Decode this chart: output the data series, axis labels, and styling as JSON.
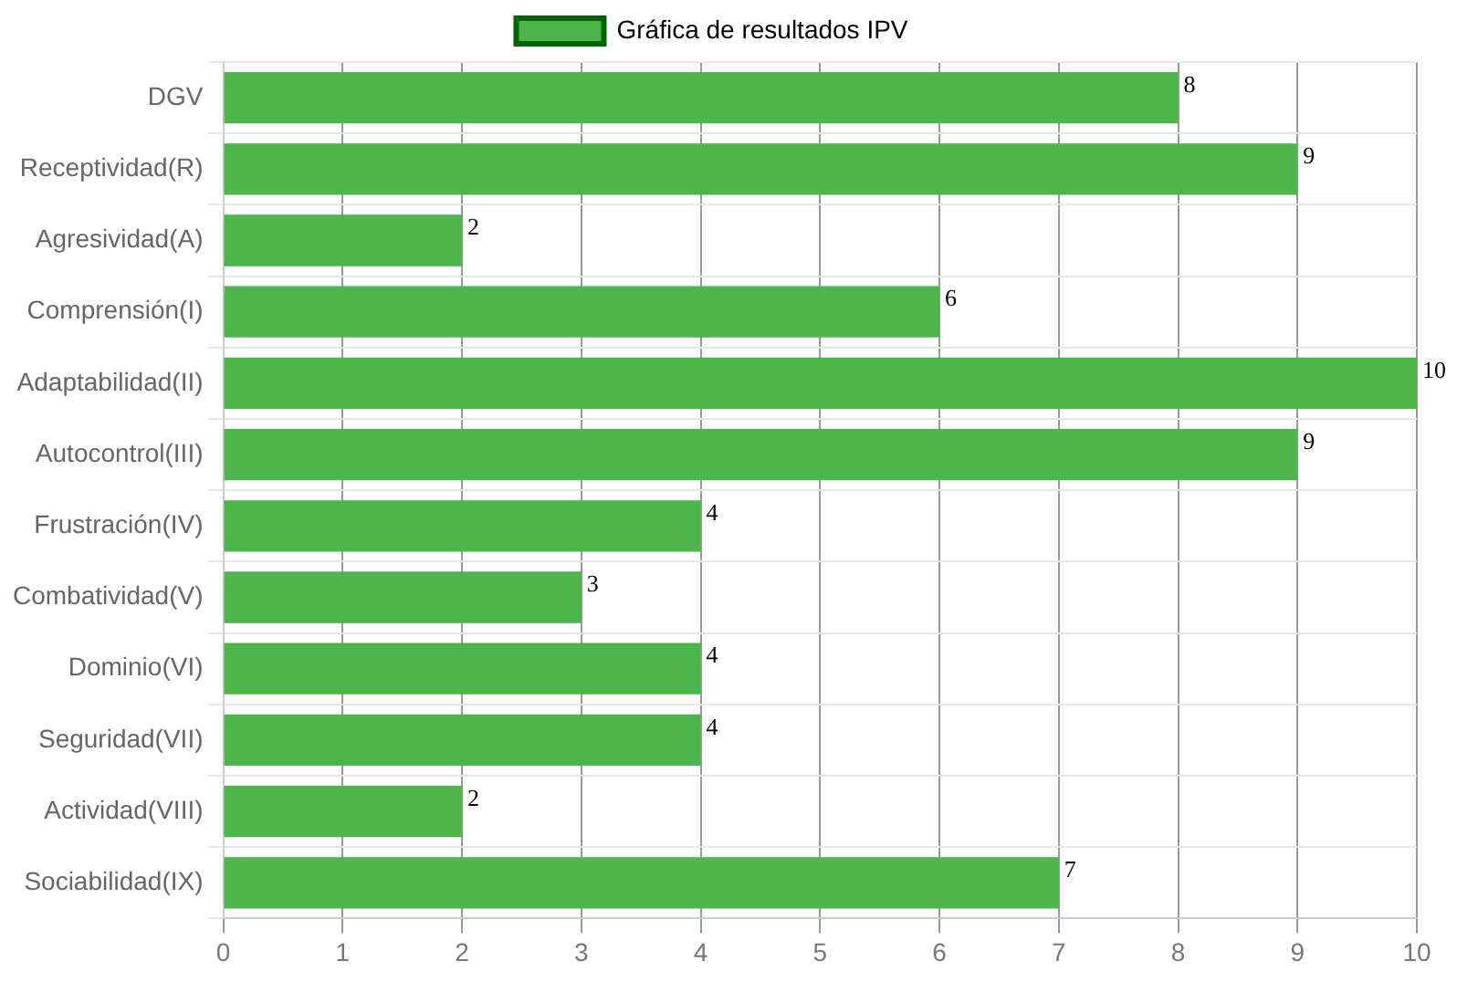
{
  "chart_data": {
    "type": "bar",
    "orientation": "horizontal",
    "categories": [
      "DGV",
      "Receptividad(R)",
      "Agresividad(A)",
      "Comprensión(I)",
      "Adaptabilidad(II)",
      "Autocontrol(III)",
      "Frustración(IV)",
      "Combatividad(V)",
      "Dominio(VI)",
      "Seguridad(VII)",
      "Actividad(VIII)",
      "Sociabilidad(IX)"
    ],
    "series": [
      {
        "name": "Gráfica de resultados IPV",
        "color": "#4cb54c",
        "values": [
          8,
          9,
          2,
          6,
          10,
          9,
          4,
          3,
          4,
          4,
          2,
          7
        ]
      }
    ],
    "xlim": [
      0,
      10
    ],
    "xticks": [
      0,
      1,
      2,
      3,
      4,
      5,
      6,
      7,
      8,
      9,
      10
    ],
    "grid": true,
    "legend": "top",
    "data_labels": true
  }
}
